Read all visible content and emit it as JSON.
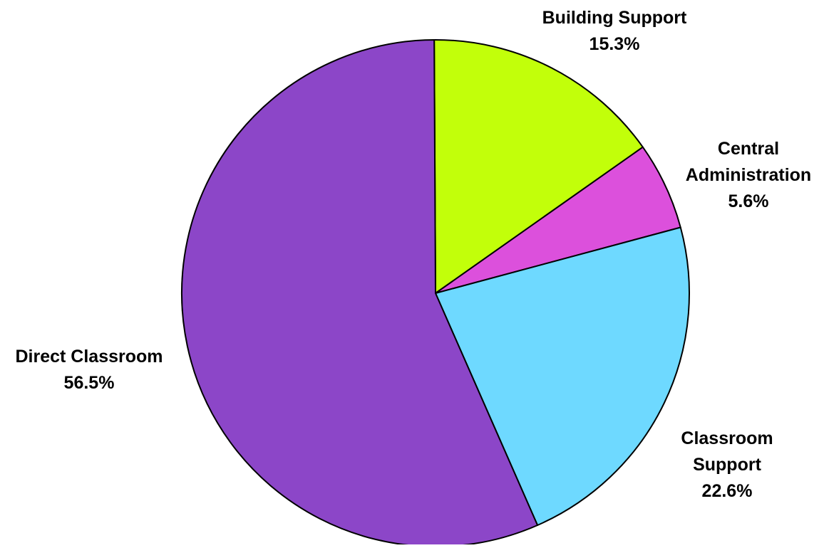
{
  "chart_data": {
    "type": "pie",
    "title": "",
    "start_angle_deg": -0.3,
    "direction": "clockwise",
    "slices": [
      {
        "name": "Building Support",
        "label_lines": [
          "Building Support",
          "15.3%"
        ],
        "value": 15.3,
        "color": "#c2ff0a"
      },
      {
        "name": "Central Administration",
        "label_lines": [
          "Central",
          "Administration",
          "5.6%"
        ],
        "value": 5.6,
        "color": "#dc50dc"
      },
      {
        "name": "Classroom Support",
        "label_lines": [
          "Classroom",
          "Support",
          "22.6%"
        ],
        "value": 22.6,
        "color": "#6ed9ff"
      },
      {
        "name": "Direct Classroom",
        "label_lines": [
          "Direct Classroom",
          "56.5%"
        ],
        "value": 56.5,
        "color": "#8c46c8"
      }
    ]
  }
}
